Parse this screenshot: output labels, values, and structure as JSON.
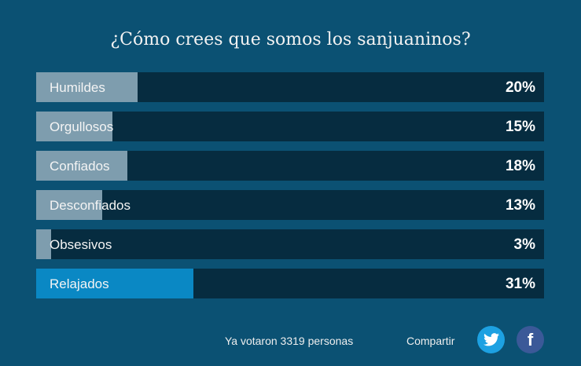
{
  "title": "¿Cómo crees que somos los sanjuaninos?",
  "options": [
    {
      "label": "Humildes",
      "percent": 20,
      "percent_label": "20%"
    },
    {
      "label": "Orgullosos",
      "percent": 15,
      "percent_label": "15%"
    },
    {
      "label": "Confiados",
      "percent": 18,
      "percent_label": "18%"
    },
    {
      "label": "Desconfiados",
      "percent": 13,
      "percent_label": "13%"
    },
    {
      "label": "Obsesivos",
      "percent": 3,
      "percent_label": "3%"
    },
    {
      "label": "Relajados",
      "percent": 31,
      "percent_label": "31%",
      "highlighted": true
    }
  ],
  "footer": {
    "votes": "Ya votaron 3319 personas",
    "share": "Compartir"
  },
  "colors": {
    "background": "#0b5173",
    "track": "#062c40",
    "fill": "#7e9dae",
    "highlight": "#0a88c4",
    "twitter": "#1da1e2",
    "facebook": "#3b5998"
  }
}
